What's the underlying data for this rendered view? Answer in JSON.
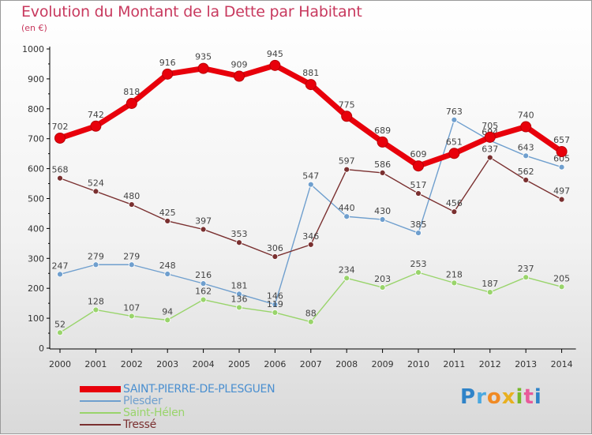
{
  "header": {
    "title": "Evolution du Montant de la Dette par Habitant",
    "subtitle": "(en €)"
  },
  "brand": {
    "text": "Proxiti",
    "colors": [
      "#2f83c8",
      "#4aa8e0",
      "#f08a24",
      "#e8b020",
      "#77b82a",
      "#e85a9a",
      "#2f83c8"
    ]
  },
  "chart_data": {
    "type": "line",
    "title": "Evolution du Montant de la Dette par Habitant",
    "subtitle": "(en €)",
    "xlabel": "",
    "ylabel": "",
    "ylim": [
      0,
      1000
    ],
    "yticks": [
      0,
      100,
      200,
      300,
      400,
      500,
      600,
      700,
      800,
      900,
      1000
    ],
    "grid": false,
    "legend_position": "bottom-left",
    "categories": [
      "2000",
      "2001",
      "2002",
      "2003",
      "2004",
      "2005",
      "2006",
      "2007",
      "2008",
      "2009",
      "2010",
      "2011",
      "2012",
      "2013",
      "2014"
    ],
    "series": [
      {
        "name": "SAINT-PIERRE-DE-PLESGUEN",
        "color": "#e8000b",
        "bold": true,
        "values": [
          702,
          742,
          818,
          916,
          935,
          909,
          945,
          881,
          775,
          689,
          609,
          651,
          705,
          740,
          657
        ]
      },
      {
        "name": "Plesder",
        "color": "#6f9fce",
        "bold": false,
        "values": [
          247,
          279,
          279,
          248,
          216,
          181,
          146,
          547,
          440,
          430,
          385,
          763,
          694,
          643,
          605
        ]
      },
      {
        "name": "Saint-Hélen",
        "color": "#99d46b",
        "bold": false,
        "values": [
          52,
          128,
          107,
          94,
          162,
          136,
          119,
          88,
          234,
          203,
          253,
          218,
          187,
          237,
          205
        ]
      },
      {
        "name": "Tressé",
        "color": "#7a3030",
        "bold": false,
        "values": [
          568,
          524,
          480,
          425,
          397,
          353,
          306,
          346,
          597,
          586,
          517,
          456,
          637,
          562,
          497
        ]
      }
    ]
  }
}
